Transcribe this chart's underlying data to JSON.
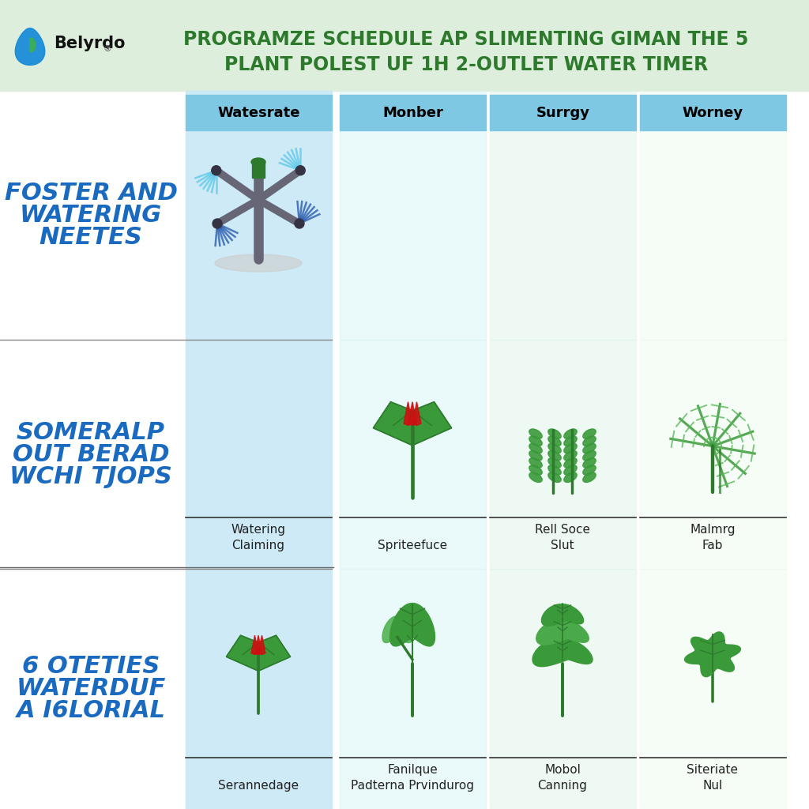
{
  "title_line1": "PROGRAMZE SCHEDULE AP SLIMENTING GIMAN THE 5",
  "title_line2": "PLANT POLEST UF 1H 2-OUTLET WATER TIMER",
  "title_color": "#2d7a2d",
  "logo_text": "Belyrdo",
  "header_bg": "#ddeedd",
  "col_headers": [
    "Watesrate",
    "Monber",
    "Surrgy",
    "Worney"
  ],
  "col_header_bg": "#7ec8e3",
  "row1_label_line1": "FOSTER AND",
  "row1_label_line2": "WATERING",
  "row1_label_line3": "NEETES",
  "row2_label_line1": "SOMERALP",
  "row2_label_line2": "OUT BERAD",
  "row2_label_line3": "WCHI TJOPS",
  "row3_label_line1": "6 OTETIES",
  "row3_label_line2": "WATERDUF",
  "row3_label_line3": "A I6LORIAL",
  "row_label_color": "#1a6abf",
  "row2_col1_labels": [
    "Watering\nClaiming"
  ],
  "row2_col2_labels": [
    "Spriteefuce"
  ],
  "row2_col3_labels": [
    "Rell Soce\nSlut"
  ],
  "row2_col4_labels": [
    "Malmrg\nFab"
  ],
  "row3_col1_labels": [
    "Serannedage"
  ],
  "row3_col2_labels": [
    "Fanilque\nPadterna Prvindurog"
  ],
  "row3_col3_labels": [
    "Mobol\nCanning"
  ],
  "row3_col4_labels": [
    "Siteriate\nNul"
  ],
  "col1_bg": "#c8e8f5",
  "col2_bg": "#ddf5f5",
  "col3_bg": "#e0f5e8",
  "col4_bg": "#eaf8ea",
  "bg_color": "#eef8ee",
  "white_bg": "#ffffff"
}
